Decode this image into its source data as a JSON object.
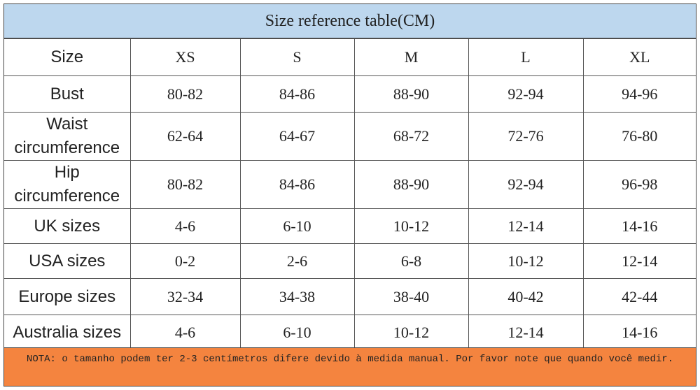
{
  "title": "Size reference table(CM)",
  "table": {
    "header": [
      "Size",
      "XS",
      "S",
      "M",
      "L",
      "XL"
    ],
    "rows": [
      [
        "Bust",
        "80-82",
        "84-86",
        "88-90",
        "92-94",
        "94-96"
      ],
      [
        "Waist circumference",
        "62-64",
        "64-67",
        "68-72",
        "72-76",
        "76-80"
      ],
      [
        "Hip circumference",
        "80-82",
        "84-86",
        "88-90",
        "92-94",
        "96-98"
      ],
      [
        "UK sizes",
        "4-6",
        "6-10",
        "10-12",
        "12-14",
        "14-16"
      ],
      [
        "USA sizes",
        "0-2",
        "2-6",
        "6-8",
        "10-12",
        "12-14"
      ],
      [
        "Europe sizes",
        "32-34",
        "34-38",
        "38-40",
        "40-42",
        "42-44"
      ],
      [
        "Australia sizes",
        "4-6",
        "6-10",
        "10-12",
        "12-14",
        "14-16"
      ]
    ]
  },
  "note": "NOTA: o tamanho podem ter 2-3 centímetros difere devido à medida manual. Por favor note que quando você medir."
}
